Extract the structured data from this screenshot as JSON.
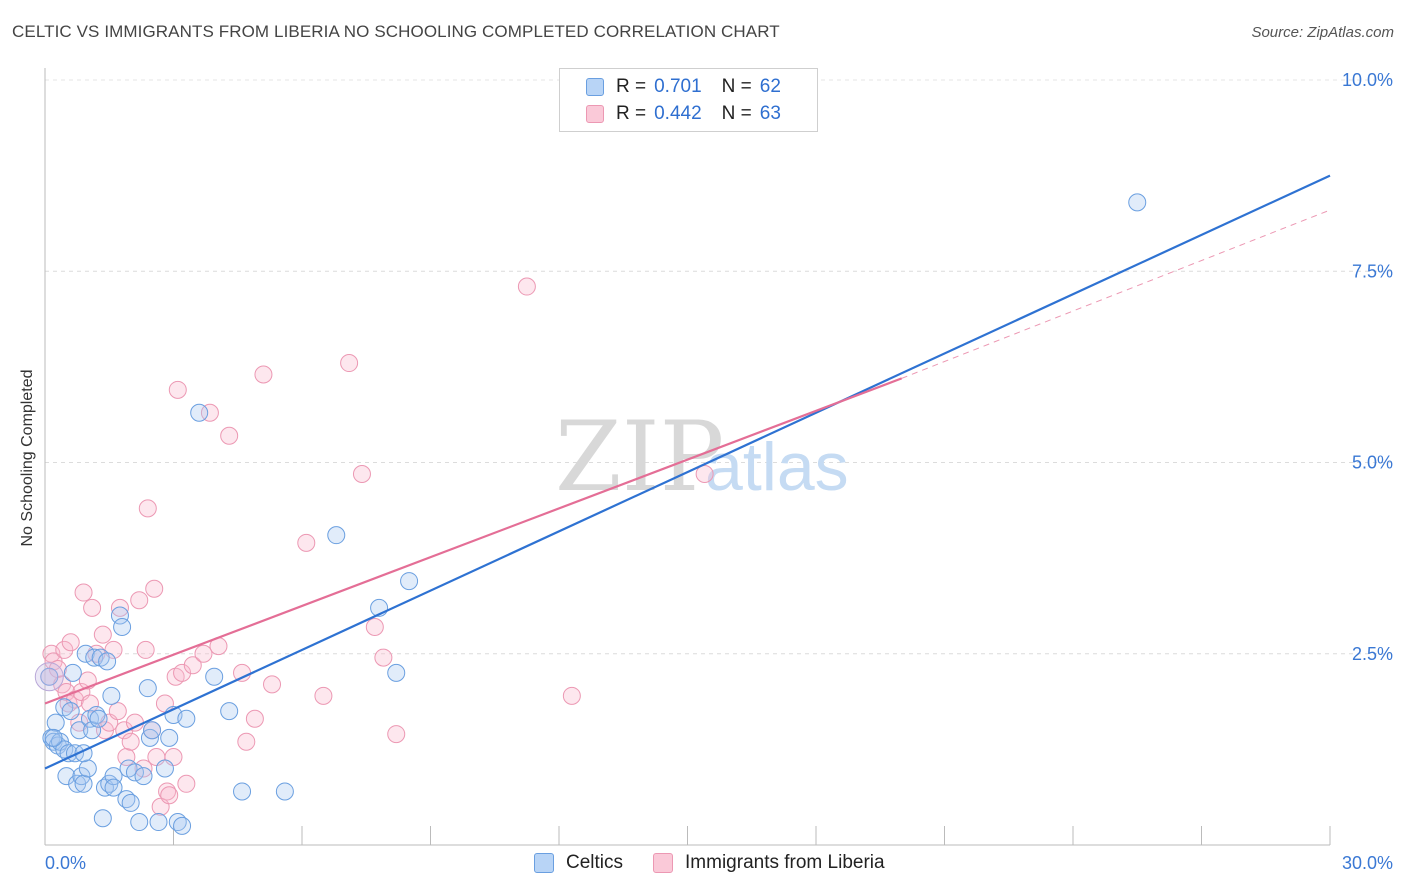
{
  "title": "CELTIC VS IMMIGRANTS FROM LIBERIA NO SCHOOLING COMPLETED CORRELATION CHART",
  "source": "Source: ZipAtlas.com",
  "watermark": {
    "zip": "ZIP",
    "atlas": "atlas"
  },
  "legend": {
    "rows": [
      {
        "r_label": "R =",
        "r_value": "0.701",
        "n_label": "N =",
        "n_value": "62"
      },
      {
        "r_label": "R =",
        "r_value": "0.442",
        "n_label": "N =",
        "n_value": "63"
      }
    ]
  },
  "bottom_legend": [
    "Celtics",
    "Immigrants from Liberia"
  ],
  "chart_data": {
    "type": "scatter",
    "title": "CELTIC VS IMMIGRANTS FROM LIBERIA NO SCHOOLING COMPLETED CORRELATION CHART",
    "xlabel": "",
    "ylabel": "No Schooling Completed",
    "xlim": [
      0,
      30
    ],
    "ylim": [
      0,
      10.5
    ],
    "x_tick_labels": [
      "0.0%",
      "30.0%"
    ],
    "y_ticks": [
      2.5,
      5.0,
      7.5,
      10.0
    ],
    "y_tick_labels": [
      "2.5%",
      "5.0%",
      "7.5%",
      "10.0%"
    ],
    "colors": {
      "celtics": "#6a9fe0",
      "celtics_line": "#2e72d2",
      "liberia": "#ec98b3",
      "liberia_line": "#e46e96",
      "axis_text": "#3a78d4"
    },
    "series": [
      {
        "name": "Celtics",
        "r": 0.701,
        "n": 62,
        "trend": {
          "x": [
            0,
            30
          ],
          "y": [
            1.0,
            8.75
          ]
        },
        "points": [
          [
            0.1,
            2.2
          ],
          [
            0.15,
            1.4
          ],
          [
            0.2,
            1.35
          ],
          [
            0.25,
            1.6
          ],
          [
            0.3,
            1.3
          ],
          [
            0.35,
            1.35
          ],
          [
            0.45,
            1.25
          ],
          [
            0.45,
            1.8
          ],
          [
            0.5,
            0.9
          ],
          [
            0.55,
            1.2
          ],
          [
            0.6,
            1.75
          ],
          [
            0.65,
            2.25
          ],
          [
            0.7,
            1.2
          ],
          [
            0.75,
            0.8
          ],
          [
            0.8,
            1.5
          ],
          [
            0.85,
            0.9
          ],
          [
            0.9,
            0.8
          ],
          [
            0.95,
            2.5
          ],
          [
            1.0,
            1.0
          ],
          [
            1.05,
            1.65
          ],
          [
            1.1,
            1.5
          ],
          [
            1.15,
            2.45
          ],
          [
            1.2,
            1.7
          ],
          [
            1.25,
            1.65
          ],
          [
            1.3,
            2.45
          ],
          [
            1.35,
            0.35
          ],
          [
            1.4,
            0.75
          ],
          [
            1.45,
            2.4
          ],
          [
            1.5,
            0.8
          ],
          [
            1.55,
            1.95
          ],
          [
            1.6,
            0.9
          ],
          [
            1.75,
            3.0
          ],
          [
            1.8,
            2.85
          ],
          [
            1.9,
            0.6
          ],
          [
            1.95,
            1.0
          ],
          [
            2.0,
            0.55
          ],
          [
            2.1,
            0.95
          ],
          [
            2.2,
            0.3
          ],
          [
            2.3,
            0.9
          ],
          [
            2.4,
            2.05
          ],
          [
            2.45,
            1.4
          ],
          [
            2.5,
            1.5
          ],
          [
            2.65,
            0.3
          ],
          [
            2.8,
            1.0
          ],
          [
            2.9,
            1.4
          ],
          [
            3.0,
            1.7
          ],
          [
            3.1,
            0.3
          ],
          [
            3.2,
            0.25
          ],
          [
            3.3,
            1.65
          ],
          [
            3.6,
            5.65
          ],
          [
            3.95,
            2.2
          ],
          [
            4.3,
            1.75
          ],
          [
            4.6,
            0.7
          ],
          [
            5.6,
            0.7
          ],
          [
            6.8,
            4.05
          ],
          [
            7.8,
            3.1
          ],
          [
            8.2,
            2.25
          ],
          [
            8.5,
            3.45
          ],
          [
            25.5,
            8.4
          ],
          [
            0.2,
            1.4
          ],
          [
            1.6,
            0.75
          ],
          [
            0.9,
            1.2
          ]
        ]
      },
      {
        "name": "Immigrants from Liberia",
        "r": 0.442,
        "n": 63,
        "trend": {
          "x": [
            0,
            20
          ],
          "y": [
            1.85,
            6.1
          ]
        },
        "trend_dashed": {
          "x": [
            20,
            30
          ],
          "y": [
            6.1,
            8.3
          ]
        },
        "points": [
          [
            0.1,
            2.2
          ],
          [
            0.15,
            2.5
          ],
          [
            0.2,
            2.4
          ],
          [
            0.3,
            2.3
          ],
          [
            0.4,
            2.1
          ],
          [
            0.45,
            2.55
          ],
          [
            0.5,
            2.0
          ],
          [
            0.55,
            1.85
          ],
          [
            0.6,
            2.65
          ],
          [
            0.7,
            1.9
          ],
          [
            0.8,
            1.6
          ],
          [
            0.85,
            2.0
          ],
          [
            0.9,
            3.3
          ],
          [
            1.0,
            2.15
          ],
          [
            1.05,
            1.85
          ],
          [
            1.1,
            3.1
          ],
          [
            1.2,
            2.5
          ],
          [
            1.35,
            2.75
          ],
          [
            1.4,
            1.5
          ],
          [
            1.5,
            1.6
          ],
          [
            1.6,
            2.55
          ],
          [
            1.7,
            1.75
          ],
          [
            1.75,
            3.1
          ],
          [
            1.85,
            1.5
          ],
          [
            1.9,
            1.15
          ],
          [
            2.0,
            1.35
          ],
          [
            2.1,
            1.6
          ],
          [
            2.2,
            3.2
          ],
          [
            2.3,
            1.0
          ],
          [
            2.35,
            2.55
          ],
          [
            2.4,
            4.4
          ],
          [
            2.5,
            1.5
          ],
          [
            2.55,
            3.35
          ],
          [
            2.6,
            1.15
          ],
          [
            2.7,
            0.5
          ],
          [
            2.8,
            1.85
          ],
          [
            2.85,
            0.7
          ],
          [
            2.9,
            0.65
          ],
          [
            3.0,
            1.15
          ],
          [
            3.05,
            2.2
          ],
          [
            3.1,
            5.95
          ],
          [
            3.2,
            2.25
          ],
          [
            3.3,
            0.8
          ],
          [
            3.45,
            2.35
          ],
          [
            3.7,
            2.5
          ],
          [
            3.85,
            5.65
          ],
          [
            4.05,
            2.6
          ],
          [
            4.3,
            5.35
          ],
          [
            4.6,
            2.25
          ],
          [
            4.7,
            1.35
          ],
          [
            4.9,
            1.65
          ],
          [
            5.1,
            6.15
          ],
          [
            5.3,
            2.1
          ],
          [
            6.1,
            3.95
          ],
          [
            6.5,
            1.95
          ],
          [
            7.1,
            6.3
          ],
          [
            7.4,
            4.85
          ],
          [
            7.7,
            2.85
          ],
          [
            7.9,
            2.45
          ],
          [
            8.2,
            1.45
          ],
          [
            11.25,
            7.3
          ],
          [
            12.3,
            1.95
          ],
          [
            15.4,
            4.85
          ]
        ]
      }
    ]
  }
}
